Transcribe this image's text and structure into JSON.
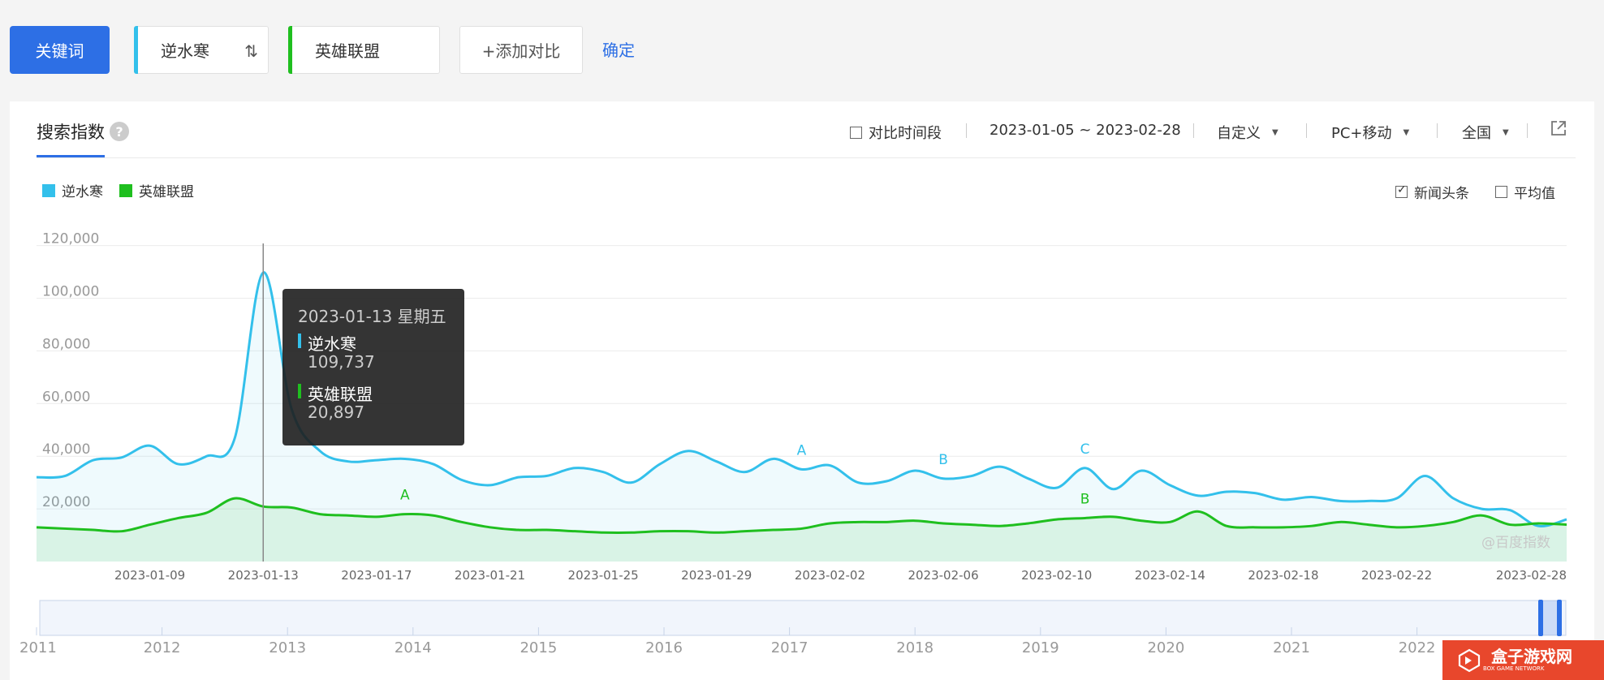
{
  "toolbar": {
    "keyword_label": "关键词",
    "term1": "逆水寒",
    "swap_icon": "⇅",
    "term2": "英雄联盟",
    "add_label": "+添加对比",
    "confirm_label": "确定",
    "term1_color": "#33c0eb",
    "term2_color": "#1fbf1f"
  },
  "card": {
    "tab_title": "搜索指数",
    "help_icon": "?",
    "compare_period": "对比时间段",
    "date_range": "2023-01-05 ~ 2023-02-28",
    "period_select": "自定义",
    "device_select": "PC+移动",
    "region_select": "全国",
    "news_label": "新闻头条",
    "avg_label": "平均值"
  },
  "tooltip": {
    "date": "2023-01-13 星期五",
    "s1_name": "逆水寒",
    "s1_value": "109,737",
    "s2_name": "英雄联盟",
    "s2_value": "20,897"
  },
  "watermark": "@百度指数",
  "brand": {
    "name": "盒子游戏网",
    "sub": "BOX GAME NETWORK"
  },
  "chart_data": {
    "type": "area",
    "title": "",
    "xlabel": "",
    "ylabel": "",
    "ylim": [
      0,
      120000
    ],
    "yticks": [
      "20,000",
      "40,000",
      "60,000",
      "80,000",
      "100,000",
      "120,000"
    ],
    "xticks": [
      "2023-01-09",
      "2023-01-13",
      "2023-01-17",
      "2023-01-21",
      "2023-01-25",
      "2023-01-29",
      "2023-02-02",
      "2023-02-06",
      "2023-02-10",
      "2023-02-14",
      "2023-02-18",
      "2023-02-22",
      "2023-02-28"
    ],
    "x": [
      "2023-01-05",
      "2023-01-06",
      "2023-01-07",
      "2023-01-08",
      "2023-01-09",
      "2023-01-10",
      "2023-01-11",
      "2023-01-12",
      "2023-01-13",
      "2023-01-14",
      "2023-01-15",
      "2023-01-16",
      "2023-01-17",
      "2023-01-18",
      "2023-01-19",
      "2023-01-20",
      "2023-01-21",
      "2023-01-22",
      "2023-01-23",
      "2023-01-24",
      "2023-01-25",
      "2023-01-26",
      "2023-01-27",
      "2023-01-28",
      "2023-01-29",
      "2023-01-30",
      "2023-01-31",
      "2023-02-01",
      "2023-02-02",
      "2023-02-03",
      "2023-02-04",
      "2023-02-05",
      "2023-02-06",
      "2023-02-07",
      "2023-02-08",
      "2023-02-09",
      "2023-02-10",
      "2023-02-11",
      "2023-02-12",
      "2023-02-13",
      "2023-02-14",
      "2023-02-15",
      "2023-02-16",
      "2023-02-17",
      "2023-02-18",
      "2023-02-19",
      "2023-02-20",
      "2023-02-21",
      "2023-02-22",
      "2023-02-23",
      "2023-02-24",
      "2023-02-25",
      "2023-02-26",
      "2023-02-27",
      "2023-02-28"
    ],
    "series": [
      {
        "name": "逆水寒",
        "color": "#33c0eb",
        "values": [
          32000,
          32500,
          38500,
          39500,
          44000,
          37000,
          40000,
          47000,
          109737,
          58000,
          42000,
          38000,
          38500,
          39000,
          37000,
          31000,
          29000,
          32000,
          32500,
          35500,
          34000,
          30000,
          37000,
          42000,
          38000,
          34000,
          39000,
          35000,
          36500,
          30000,
          30500,
          34500,
          31500,
          32500,
          36000,
          31500,
          28000,
          35500,
          27500,
          34500,
          29000,
          25000,
          26500,
          26000,
          23500,
          24500,
          23000,
          23000,
          24000,
          32500,
          24000,
          20000,
          19500,
          13500,
          16000
        ]
      },
      {
        "name": "英雄联盟",
        "color": "#1fbf1f",
        "values": [
          13000,
          12500,
          12000,
          11500,
          14000,
          16500,
          18500,
          24000,
          20897,
          20500,
          18000,
          17500,
          17000,
          18000,
          17500,
          15000,
          13000,
          12000,
          12000,
          11500,
          11000,
          11000,
          11500,
          11500,
          11000,
          11500,
          12000,
          12500,
          14500,
          15000,
          15000,
          15500,
          14500,
          14000,
          13500,
          14500,
          16000,
          16500,
          17000,
          15500,
          15000,
          19000,
          13500,
          13000,
          13000,
          13500,
          15000,
          14000,
          13000,
          13500,
          15000,
          17500,
          14000,
          14500,
          14000
        ]
      }
    ],
    "annotations": [
      {
        "series": "逆水寒",
        "x": "2023-02-01",
        "label": "A"
      },
      {
        "series": "逆水寒",
        "x": "2023-02-06",
        "label": "B"
      },
      {
        "series": "逆水寒",
        "x": "2023-02-11",
        "label": "C"
      },
      {
        "series": "英雄联盟",
        "x": "2023-01-18",
        "label": "A"
      },
      {
        "series": "英雄联盟",
        "x": "2023-02-11",
        "label": "B"
      }
    ],
    "selected_x": "2023-01-13",
    "legend": "top-left",
    "grid": true,
    "overview_years": [
      "2011",
      "2012",
      "2013",
      "2014",
      "2015",
      "2016",
      "2017",
      "2018",
      "2019",
      "2020",
      "2021",
      "2022"
    ]
  }
}
